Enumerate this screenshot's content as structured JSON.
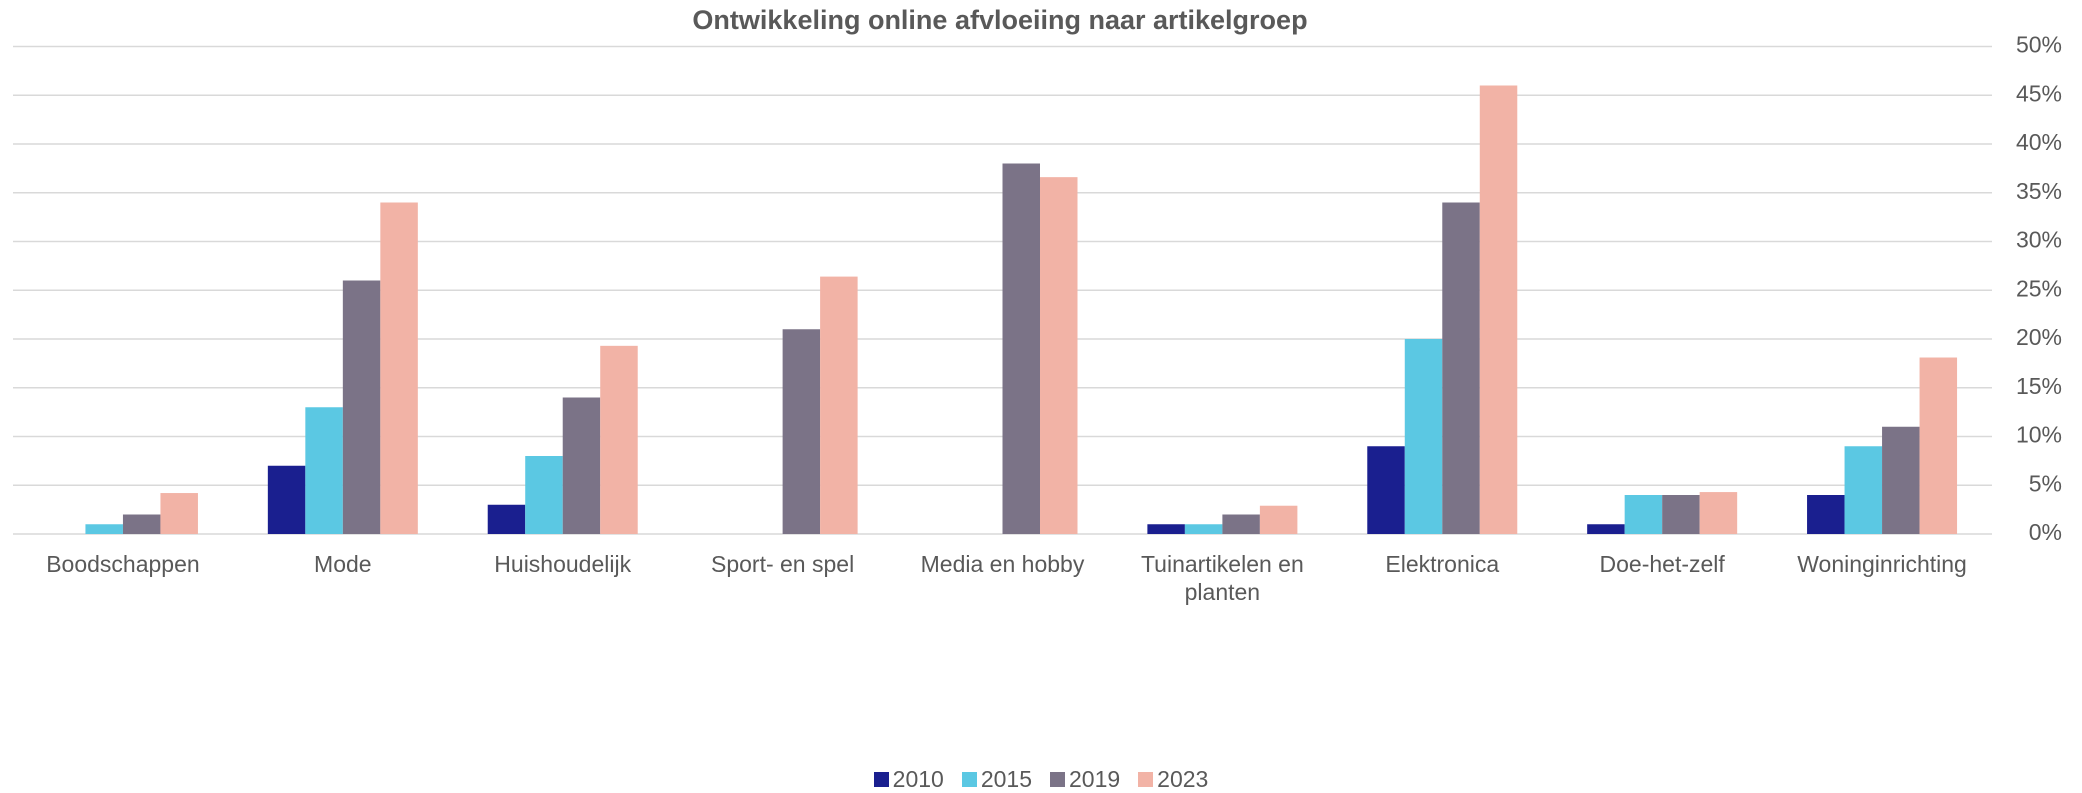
{
  "chart_data": {
    "type": "bar",
    "title": "Ontwikkeling online afvloeiing naar artikelgroep",
    "categories": [
      "Boodschappen",
      "Mode",
      "Huishoudelijk",
      "Sport- en spel",
      "Media en hobby",
      "Tuinartikelen en planten",
      "Elektronica",
      "Doe-het-zelf",
      "Woninginrichting"
    ],
    "series": [
      {
        "name": "2010",
        "color": "#1a1f8f",
        "values": [
          null,
          7,
          3,
          null,
          null,
          1,
          9,
          1,
          4
        ]
      },
      {
        "name": "2015",
        "color": "#5bc8e3",
        "values": [
          1,
          13,
          8,
          null,
          null,
          1,
          20,
          4,
          9
        ]
      },
      {
        "name": "2019",
        "color": "#7b7387",
        "values": [
          2,
          26,
          14,
          21,
          38,
          2,
          34,
          4,
          11
        ]
      },
      {
        "name": "2023",
        "color": "#f2b3a6",
        "values": [
          4.2,
          34,
          19.3,
          26.4,
          36.6,
          2.9,
          46,
          4.3,
          18.1
        ]
      }
    ],
    "ylim": [
      0,
      50
    ],
    "yticks": [
      {
        "value": 0,
        "label": "0%"
      },
      {
        "value": 5,
        "label": "5%"
      },
      {
        "value": 10,
        "label": "10%"
      },
      {
        "value": 15,
        "label": "15%"
      },
      {
        "value": 20,
        "label": "20%"
      },
      {
        "value": 25,
        "label": "25%"
      },
      {
        "value": 30,
        "label": "30%"
      },
      {
        "value": 35,
        "label": "35%"
      },
      {
        "value": 40,
        "label": "40%"
      },
      {
        "value": 45,
        "label": "45%"
      },
      {
        "value": 50,
        "label": "50%"
      }
    ],
    "grid": true,
    "legend": "bottom"
  }
}
